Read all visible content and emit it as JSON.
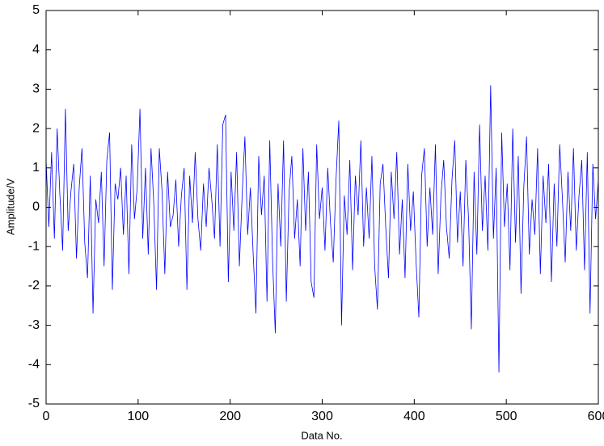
{
  "chart_data": {
    "type": "line",
    "xlabel": "Data No.",
    "ylabel": "Amplitude/V",
    "xlim": [
      0,
      600
    ],
    "ylim": [
      -5,
      5
    ],
    "xticks": [
      0,
      100,
      200,
      300,
      400,
      500,
      600
    ],
    "yticks": [
      -5,
      -4,
      -3,
      -2,
      -1,
      0,
      1,
      2,
      3,
      4,
      5
    ],
    "grid": false,
    "x": [
      0,
      3,
      6,
      9,
      12,
      15,
      18,
      21,
      24,
      27,
      30,
      33,
      36,
      39,
      42,
      45,
      48,
      51,
      54,
      57,
      60,
      63,
      66,
      69,
      72,
      75,
      78,
      81,
      84,
      87,
      90,
      93,
      96,
      99,
      102,
      105,
      108,
      111,
      114,
      117,
      120,
      123,
      126,
      129,
      132,
      135,
      138,
      141,
      144,
      147,
      150,
      153,
      156,
      159,
      162,
      165,
      168,
      171,
      174,
      177,
      180,
      183,
      186,
      189,
      192,
      195,
      198,
      201,
      204,
      207,
      210,
      213,
      216,
      219,
      222,
      225,
      228,
      231,
      234,
      237,
      240,
      243,
      246,
      249,
      252,
      255,
      258,
      261,
      264,
      267,
      270,
      273,
      276,
      279,
      282,
      285,
      288,
      291,
      294,
      297,
      300,
      303,
      306,
      309,
      312,
      315,
      318,
      321,
      324,
      327,
      330,
      333,
      336,
      339,
      342,
      345,
      348,
      351,
      354,
      357,
      360,
      363,
      366,
      369,
      372,
      375,
      378,
      381,
      384,
      387,
      390,
      393,
      396,
      399,
      402,
      405,
      408,
      411,
      414,
      417,
      420,
      423,
      426,
      429,
      432,
      435,
      438,
      441,
      444,
      447,
      450,
      453,
      456,
      459,
      462,
      465,
      468,
      471,
      474,
      477,
      480,
      483,
      486,
      489,
      492,
      495,
      498,
      501,
      504,
      507,
      510,
      513,
      516,
      519,
      522,
      525,
      528,
      531,
      534,
      537,
      540,
      543,
      546,
      549,
      552,
      555,
      558,
      561,
      564,
      567,
      570,
      573,
      576,
      579,
      582,
      585,
      588,
      591,
      594,
      597,
      600
    ],
    "series": [
      {
        "color": "#0000ff",
        "values": [
          1.2,
          -0.5,
          1.4,
          -0.8,
          2.0,
          0.3,
          -1.1,
          2.5,
          -0.6,
          0.4,
          1.1,
          -1.3,
          0.5,
          1.5,
          -0.9,
          -1.8,
          0.8,
          -2.7,
          0.2,
          -0.4,
          0.9,
          -1.5,
          1.2,
          1.9,
          -2.1,
          0.6,
          0.2,
          1.0,
          -0.7,
          0.8,
          -1.7,
          1.6,
          -0.3,
          0.5,
          2.5,
          -0.8,
          1.0,
          -1.2,
          1.5,
          0.1,
          -2.1,
          1.5,
          0.4,
          -1.7,
          0.9,
          -0.5,
          -0.2,
          0.7,
          -1.0,
          0.3,
          1.0,
          -2.1,
          0.8,
          -0.4,
          1.4,
          -0.3,
          -1.1,
          0.6,
          -0.5,
          1.0,
          0.2,
          -0.8,
          1.6,
          -1.0,
          2.1,
          2.35,
          -1.9,
          0.9,
          -0.6,
          1.4,
          -1.5,
          0.3,
          1.8,
          -0.7,
          0.5,
          -1.2,
          -2.7,
          1.3,
          -0.2,
          0.8,
          -2.4,
          1.7,
          -1.3,
          -3.2,
          0.6,
          -1.0,
          1.7,
          -2.4,
          0.4,
          1.3,
          -0.8,
          0.2,
          -1.5,
          1.5,
          -0.6,
          0.9,
          -1.9,
          -2.3,
          1.6,
          -0.3,
          0.5,
          -1.1,
          1.0,
          -0.4,
          -1.4,
          0.7,
          2.2,
          -3.0,
          0.3,
          -0.7,
          1.2,
          -1.6,
          0.8,
          -0.2,
          1.7,
          -1.0,
          0.5,
          -0.8,
          1.3,
          -1.5,
          -2.6,
          0.6,
          1.1,
          -0.5,
          -1.8,
          0.9,
          -0.3,
          1.4,
          -1.2,
          0.2,
          -1.8,
          1.1,
          -0.6,
          0.4,
          -1.4,
          -2.8,
          0.8,
          1.5,
          -1.0,
          0.5,
          -0.7,
          1.6,
          -1.7,
          0.3,
          1.2,
          -0.5,
          -1.3,
          0.7,
          1.7,
          -0.9,
          0.4,
          -1.5,
          1.2,
          -0.3,
          -3.1,
          0.9,
          -1.2,
          2.1,
          -0.6,
          0.8,
          -1.1,
          3.1,
          -0.8,
          1.0,
          -4.2,
          1.9,
          -0.5,
          0.6,
          -1.6,
          2.0,
          -0.9,
          1.3,
          -2.2,
          0.5,
          1.8,
          -1.2,
          0.2,
          -0.7,
          1.5,
          -1.7,
          0.8,
          -0.4,
          1.1,
          -1.9,
          0.6,
          -1.0,
          1.6,
          0.2,
          -1.4,
          0.9,
          -0.6,
          1.5,
          -1.1,
          0.3,
          1.2,
          -1.6,
          1.4,
          -2.7,
          1.1,
          -0.3,
          0.7
        ]
      }
    ]
  }
}
